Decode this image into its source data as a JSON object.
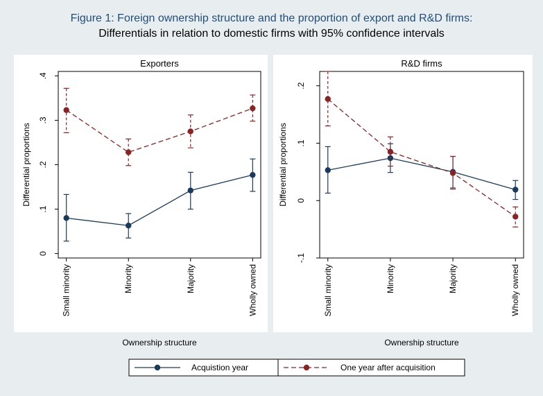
{
  "figure": {
    "title": "Figure 1: Foreign ownership structure and the proportion of export and R&D firms:",
    "subtitle": "Differentials in relation to domestic firms with 95% confidence intervals"
  },
  "legend": {
    "items": [
      {
        "label": "Acquistion year",
        "color": "#1a3a5c",
        "style": "solid"
      },
      {
        "label": "One year after acquisition",
        "color": "#8b2323",
        "style": "dashed"
      }
    ]
  },
  "chart_data": [
    {
      "type": "line",
      "title": "Exporters",
      "xlabel": "Ownership structure",
      "ylabel": "Differential proportions",
      "categories": [
        "Small minority",
        "Minority",
        "Majority",
        "Wholly owned"
      ],
      "ylim": [
        -0.01,
        0.41
      ],
      "yticks": [
        0,
        0.1,
        0.2,
        0.3,
        0.4
      ],
      "ytick_labels": [
        "0",
        ".1",
        ".2",
        ".3",
        ".4"
      ],
      "series": [
        {
          "name": "Acquistion year",
          "color": "#1a3a5c",
          "dash": false,
          "values": [
            0.08,
            0.063,
            0.142,
            0.177
          ],
          "ci_low": [
            0.028,
            0.035,
            0.1,
            0.14
          ],
          "ci_high": [
            0.133,
            0.09,
            0.183,
            0.213
          ]
        },
        {
          "name": "One year after acquisition",
          "color": "#8b2323",
          "dash": true,
          "values": [
            0.323,
            0.228,
            0.275,
            0.327
          ],
          "ci_low": [
            0.272,
            0.198,
            0.238,
            0.298
          ],
          "ci_high": [
            0.372,
            0.258,
            0.312,
            0.357
          ]
        }
      ]
    },
    {
      "type": "line",
      "title": "R&D firms",
      "xlabel": "Ownership structure",
      "ylabel": "Differential proportions",
      "categories": [
        "Small minority",
        "Minority",
        "Majority",
        "Wholly owned"
      ],
      "ylim": [
        -0.1,
        0.225
      ],
      "yticks": [
        -0.1,
        0,
        0.1,
        0.2
      ],
      "ytick_labels": [
        "-.1",
        "0",
        ".1",
        ".2"
      ],
      "series": [
        {
          "name": "Acquistion year",
          "color": "#1a3a5c",
          "dash": false,
          "values": [
            0.053,
            0.074,
            0.05,
            0.019
          ],
          "ci_low": [
            0.013,
            0.049,
            0.022,
            0.002
          ],
          "ci_high": [
            0.094,
            0.099,
            0.077,
            0.035
          ]
        },
        {
          "name": "One year after acquisition",
          "color": "#8b2323",
          "dash": true,
          "values": [
            0.177,
            0.085,
            0.048,
            -0.028
          ],
          "ci_low": [
            0.13,
            0.06,
            0.02,
            -0.046
          ],
          "ci_high": [
            0.225,
            0.111,
            0.077,
            -0.011
          ]
        }
      ]
    }
  ]
}
